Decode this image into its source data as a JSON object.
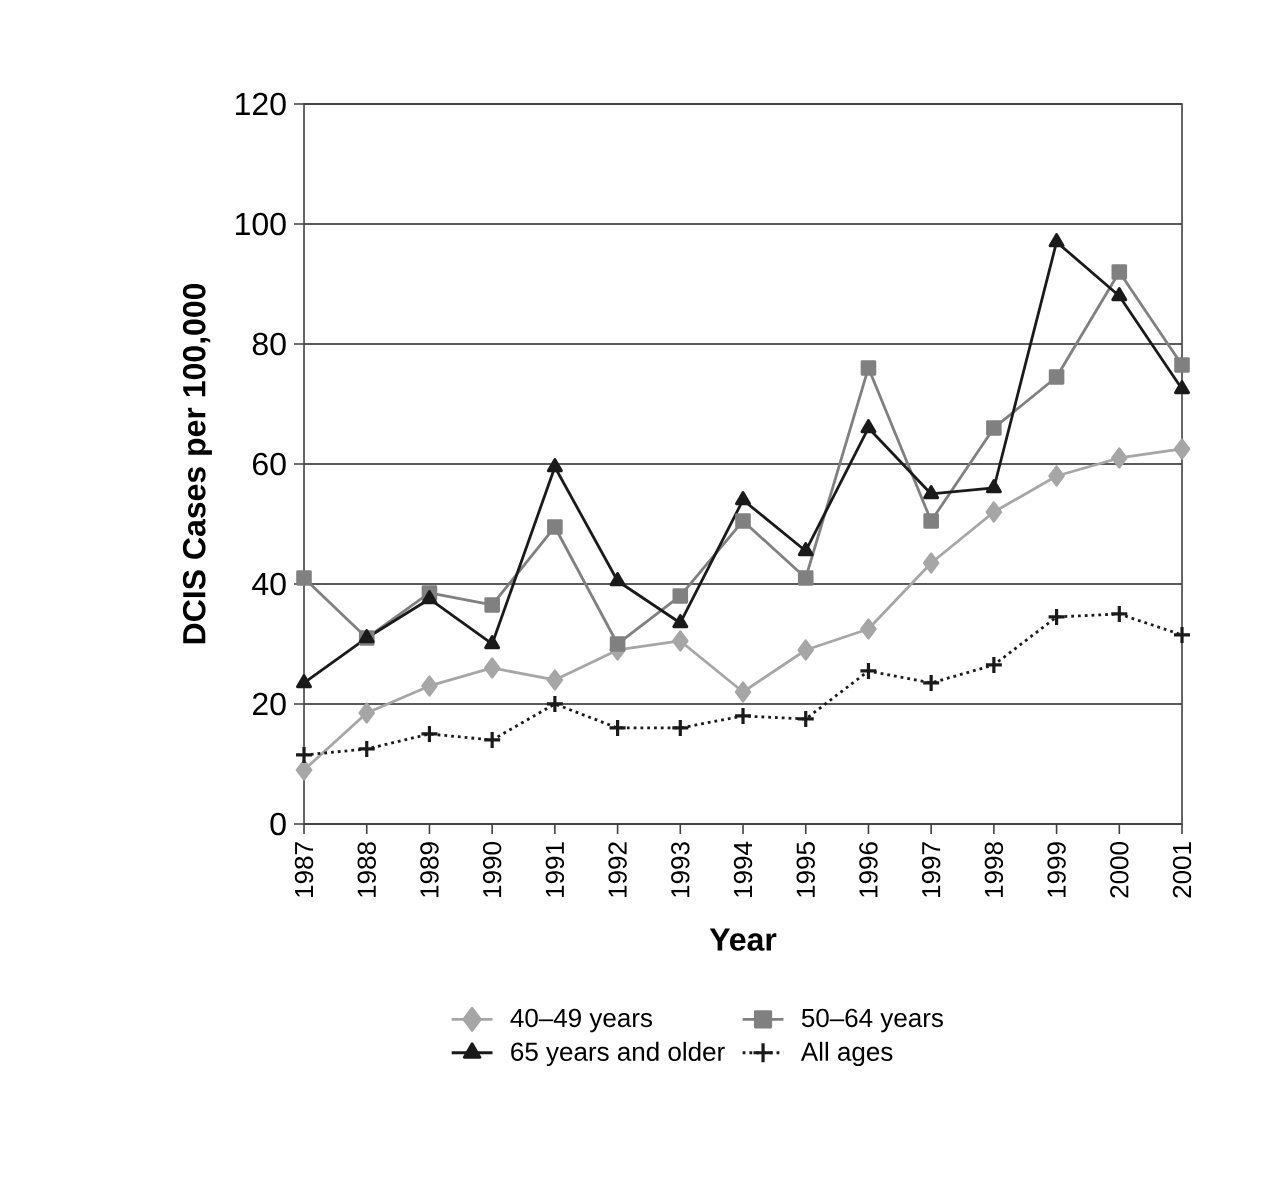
{
  "chart_data": {
    "type": "line",
    "xlabel": "Year",
    "ylabel": "DCIS Cases per 100,000",
    "categories": [
      "1987",
      "1988",
      "1989",
      "1990",
      "1991",
      "1992",
      "1993",
      "1994",
      "1995",
      "1996",
      "1997",
      "1998",
      "1999",
      "2000",
      "2001"
    ],
    "series": [
      {
        "name": "40–49 years",
        "color": "#a6a6a6",
        "marker": "diamond",
        "line_style": "solid",
        "values": [
          9,
          18.5,
          23,
          26,
          24,
          29,
          30.5,
          22,
          29,
          32.5,
          43.5,
          52,
          58,
          61,
          62.5
        ]
      },
      {
        "name": "50–64 years",
        "color": "#808080",
        "marker": "square",
        "line_style": "solid",
        "values": [
          41,
          31,
          38.5,
          36.5,
          49.5,
          30,
          38,
          50.5,
          41,
          76,
          50.5,
          66,
          74.5,
          92,
          76.5
        ]
      },
      {
        "name": "65 years and older",
        "color": "#1a1a1a",
        "marker": "triangle",
        "line_style": "solid",
        "values": [
          23.5,
          31,
          37.5,
          30,
          59.5,
          40.5,
          33.5,
          54,
          45.5,
          66,
          55,
          56,
          97,
          88,
          72.5
        ]
      },
      {
        "name": "All ages",
        "color": "#1a1a1a",
        "marker": "cross",
        "line_style": "dotted",
        "values": [
          11.5,
          12.5,
          15,
          14,
          20,
          16,
          16,
          18,
          17.5,
          25.5,
          23.5,
          26.5,
          34.5,
          35,
          31.5
        ]
      }
    ],
    "ylim": [
      0,
      120
    ],
    "yticks": [
      0,
      20,
      40,
      60,
      80,
      100,
      120
    ],
    "grid": "y",
    "legend": "bottom"
  }
}
